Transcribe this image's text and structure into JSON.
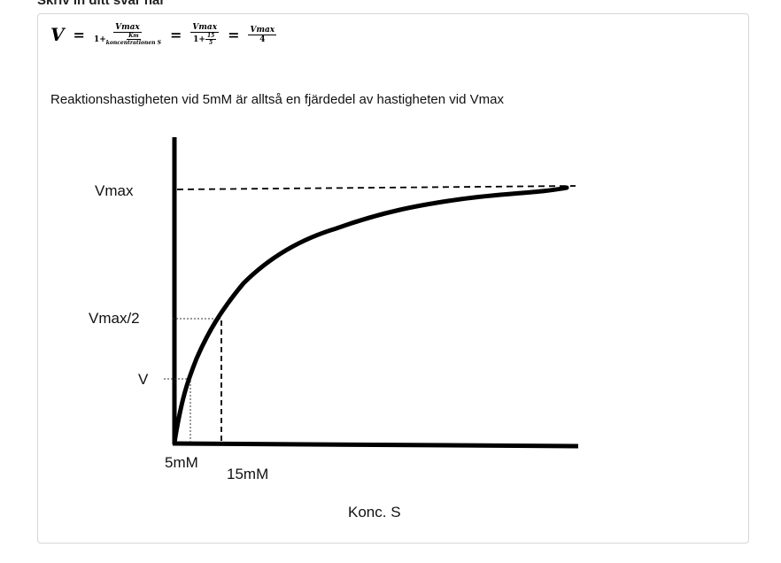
{
  "header": {
    "title": "Skriv in ditt svar här"
  },
  "formula": {
    "lhs": "V",
    "eq": "=",
    "vmax": "Vmax",
    "one_plus": "1+",
    "km": "Km",
    "konc": "koncentrationen S",
    "n15": "15",
    "n5": "5",
    "four": "4"
  },
  "answer_text": "Reaktionshastigheten vid 5mM är alltså en fjärdedel av hastigheten vid Vmax",
  "diagram": {
    "labels": {
      "vmax": "Vmax",
      "vmax_half": "Vmax/2",
      "v": "V",
      "x5": "5mM",
      "x15": "15mM",
      "xaxis": "Konc. S"
    }
  }
}
